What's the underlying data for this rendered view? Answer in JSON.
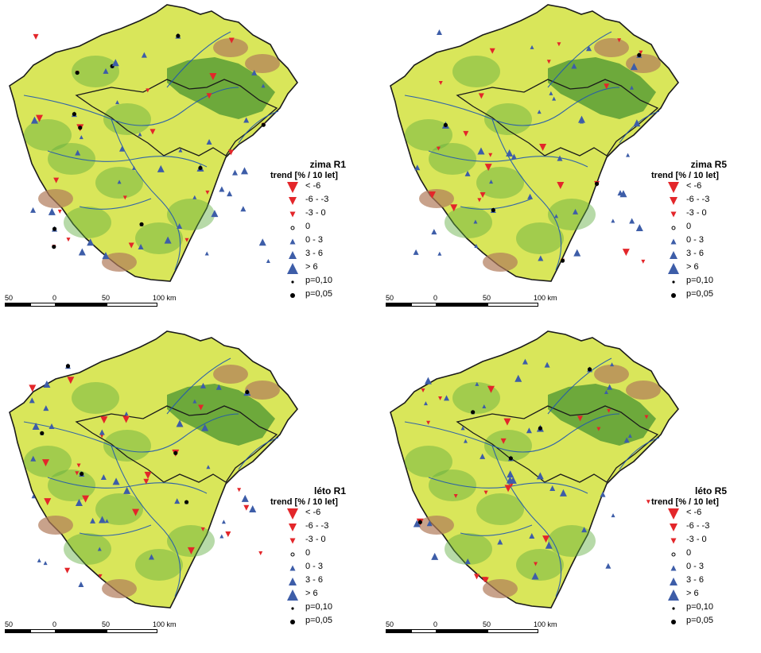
{
  "panels": [
    {
      "title": "zima R1",
      "seed": 11
    },
    {
      "title": "zima R5",
      "seed": 27
    },
    {
      "title": "léto R1",
      "seed": 43
    },
    {
      "title": "léto R5",
      "seed": 59
    }
  ],
  "legend": {
    "subtitle": "trend [% / 10 let]",
    "classes": [
      "< -6",
      "-6 - -3",
      "-3 - 0",
      "0",
      "0 - 3",
      "3 - 6",
      "> 6"
    ],
    "significance": [
      "p=0,10",
      "p=0,05"
    ]
  },
  "scale": {
    "labels": [
      "50",
      "0",
      "50",
      "100 km"
    ]
  },
  "colors": {
    "decrease": "#e3262a",
    "increase": "#3d5da8",
    "river": "#1f56b0",
    "border": "#1a1a1a",
    "lowland": "#d9e65a",
    "upland": "#5fae3e",
    "mountain": "#b07a5a"
  }
}
